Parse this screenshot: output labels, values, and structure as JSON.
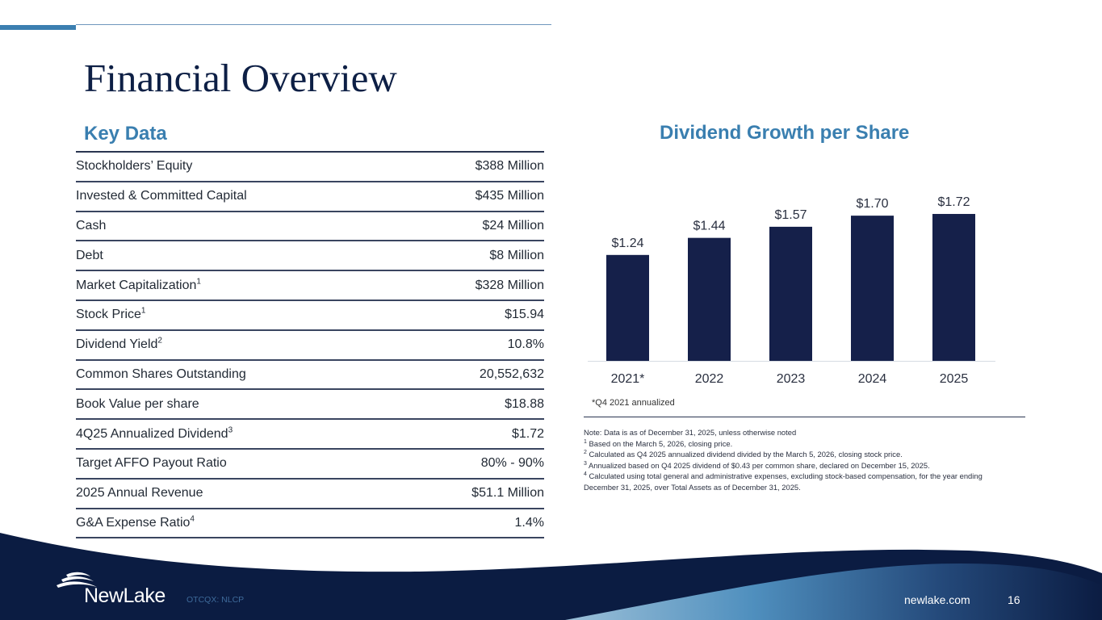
{
  "title": "Financial Overview",
  "key_data": {
    "heading": "Key Data",
    "rows": [
      {
        "label": "Stockholders’ Equity",
        "sup": "",
        "value": "$388 Million"
      },
      {
        "label": "Invested & Committed Capital",
        "sup": "",
        "value": "$435 Million"
      },
      {
        "label": "Cash",
        "sup": "",
        "value": "$24 Million"
      },
      {
        "label": "Debt",
        "sup": "",
        "value": "$8 Million"
      },
      {
        "label": "Market Capitalization",
        "sup": "1",
        "value": "$328 Million"
      },
      {
        "label": "Stock Price",
        "sup": "1",
        "value": "$15.94"
      },
      {
        "label": "Dividend Yield",
        "sup": "2",
        "value": "10.8%"
      },
      {
        "label": "Common Shares Outstanding",
        "sup": "",
        "value": "20,552,632"
      },
      {
        "label": "Book Value per share",
        "sup": "",
        "value": "$18.88"
      },
      {
        "label": "4Q25 Annualized Dividend",
        "sup": "3",
        "value": "$1.72"
      },
      {
        "label": "Target AFFO Payout Ratio",
        "sup": "",
        "value": "80% - 90%"
      },
      {
        "label": "2025 Annual Revenue",
        "sup": "",
        "value": "$51.1 Million"
      },
      {
        "label": "G&A Expense Ratio",
        "sup": "4",
        "value": "1.4%"
      }
    ]
  },
  "chart_data": {
    "type": "bar",
    "title": "Dividend Growth per Share",
    "categories": [
      "2021*",
      "2022",
      "2023",
      "2024",
      "2025"
    ],
    "values": [
      1.24,
      1.44,
      1.57,
      1.7,
      1.72
    ],
    "data_labels": [
      "$1.24",
      "$1.44",
      "$1.57",
      "$1.70",
      "$1.72"
    ],
    "xlabel": "",
    "ylabel": "",
    "ylim": [
      0,
      1.8
    ],
    "grid": false,
    "legend": "none",
    "bar_color": "#15204a",
    "footnote": "*Q4 2021 annualized"
  },
  "notes": [
    {
      "sup": "",
      "text": "Note: Data is as of December 31, 2025, unless otherwise noted"
    },
    {
      "sup": "1",
      "text": " Based on the March 5, 2026, closing price."
    },
    {
      "sup": "2",
      "text": " Calculated as Q4 2025 annualized dividend divided by the March 5, 2026, closing stock price."
    },
    {
      "sup": "3",
      "text": " Annualized based on Q4 2025 dividend of $0.43 per common share, declared on December 15, 2025."
    },
    {
      "sup": "4",
      "text": " Calculated using total general and administrative expenses, excluding stock-based compensation, for the year ending"
    },
    {
      "sup": "",
      "text": "December 31, 2025, over Total Assets as of December 31, 2025."
    }
  ],
  "footer": {
    "brand": "NewLake",
    "ticker": "OTCQX: NLCP",
    "website": "newlake.com",
    "page_number": "16"
  },
  "colors": {
    "accent": "#3a7fb0",
    "navy": "#0b1c42",
    "bar": "#15204a"
  }
}
